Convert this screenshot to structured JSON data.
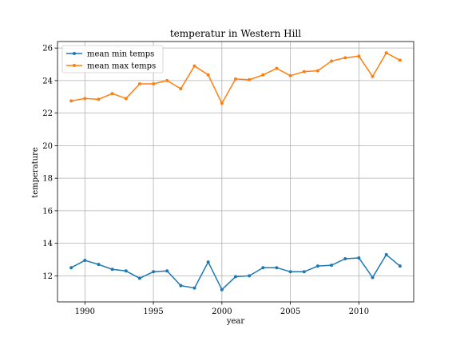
{
  "chart_data": {
    "type": "line",
    "title": "temperatur in Western Hill",
    "xlabel": "year",
    "ylabel": "temperature",
    "xlim": [
      1988,
      2014
    ],
    "ylim": [
      10.4,
      26.4
    ],
    "xticks": [
      1990,
      1995,
      2000,
      2005,
      2010
    ],
    "yticks": [
      12,
      14,
      16,
      18,
      20,
      22,
      24,
      26
    ],
    "grid": true,
    "legend_position": "top-left",
    "x": [
      1989,
      1990,
      1991,
      1992,
      1993,
      1994,
      1995,
      1996,
      1997,
      1998,
      1999,
      2000,
      2001,
      2002,
      2003,
      2004,
      2005,
      2006,
      2007,
      2008,
      2009,
      2010,
      2011,
      2012,
      2013
    ],
    "series": [
      {
        "name": "mean min temps",
        "color": "#1f77b4",
        "values": [
          12.5,
          12.95,
          12.7,
          12.4,
          12.3,
          11.85,
          12.25,
          12.3,
          11.4,
          11.25,
          12.85,
          11.15,
          11.95,
          12.0,
          12.5,
          12.5,
          12.25,
          12.25,
          12.6,
          12.65,
          13.05,
          13.1,
          11.9,
          13.3,
          12.6
        ]
      },
      {
        "name": "mean max temps",
        "color": "#ff7f0e",
        "values": [
          22.75,
          22.9,
          22.85,
          23.2,
          22.9,
          23.8,
          23.8,
          24.0,
          23.5,
          24.9,
          24.35,
          22.6,
          24.1,
          24.05,
          24.35,
          24.75,
          24.3,
          24.55,
          24.6,
          25.2,
          25.4,
          25.5,
          24.25,
          25.7,
          25.25
        ]
      }
    ]
  }
}
